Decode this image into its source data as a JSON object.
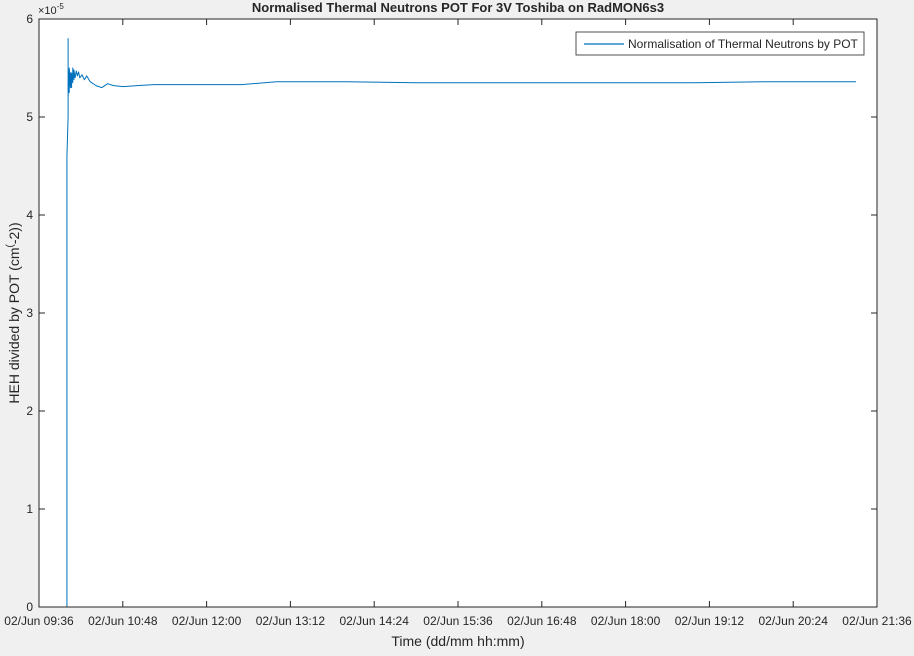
{
  "chart_data": {
    "type": "line",
    "title": "Normalised Thermal Neutrons POT For 3V Toshiba on RadMON6s3",
    "xlabel": "Time (dd/mm hh:mm)",
    "ylabel_main": "HEH divided by POT (cm",
    "ylabel_sup": "(",
    "ylabel_tail": "-2))",
    "y_exponent_base": "×10",
    "y_exponent": "-5",
    "xlim": [
      "2025-06-02T09:36",
      "2025-06-02T21:36"
    ],
    "ylim": [
      0,
      6e-05
    ],
    "x_tick_values": [
      "2025-06-02T09:36",
      "2025-06-02T10:48",
      "2025-06-02T12:00",
      "2025-06-02T13:12",
      "2025-06-02T14:24",
      "2025-06-02T15:36",
      "2025-06-02T16:48",
      "2025-06-02T18:00",
      "2025-06-02T19:12",
      "2025-06-02T20:24",
      "2025-06-02T21:36"
    ],
    "x_tick_labels": [
      "02/Jun 09:36",
      "02/Jun 10:48",
      "02/Jun 12:00",
      "02/Jun 13:12",
      "02/Jun 14:24",
      "02/Jun 15:36",
      "02/Jun 16:48",
      "02/Jun 18:00",
      "02/Jun 19:12",
      "02/Jun 20:24",
      "02/Jun 21:36"
    ],
    "y_tick_values": [
      0,
      1e-05,
      2e-05,
      3e-05,
      4e-05,
      5e-05,
      6e-05
    ],
    "y_tick_labels": [
      "0",
      "1",
      "2",
      "3",
      "4",
      "5",
      "6"
    ],
    "grid": false,
    "legend_position": "top-right",
    "series": [
      {
        "name": "Normalisation of Thermal Neutrons by POT",
        "color": "#0072bd",
        "x": [
          "2025-06-02T10:00",
          "2025-06-02T10:00",
          "2025-06-02T10:00",
          "2025-06-02T10:00",
          "2025-06-02T10:01",
          "2025-06-02T10:01",
          "2025-06-02T10:01",
          "2025-06-02T10:01",
          "2025-06-02T10:01",
          "2025-06-02T10:02",
          "2025-06-02T10:02",
          "2025-06-02T10:02",
          "2025-06-02T10:03",
          "2025-06-02T10:03",
          "2025-06-02T10:04",
          "2025-06-02T10:04",
          "2025-06-02T10:05",
          "2025-06-02T10:05",
          "2025-06-02T10:06",
          "2025-06-02T10:06",
          "2025-06-02T10:07",
          "2025-06-02T10:08",
          "2025-06-02T10:09",
          "2025-06-02T10:10",
          "2025-06-02T10:11",
          "2025-06-02T10:13",
          "2025-06-02T10:15",
          "2025-06-02T10:17",
          "2025-06-02T10:20",
          "2025-06-02T10:25",
          "2025-06-02T10:30",
          "2025-06-02T10:35",
          "2025-06-02T10:40",
          "2025-06-02T10:48",
          "2025-06-02T11:00",
          "2025-06-02T11:15",
          "2025-06-02T11:30",
          "2025-06-02T12:00",
          "2025-06-02T12:30",
          "2025-06-02T13:00",
          "2025-06-02T13:30",
          "2025-06-02T14:00",
          "2025-06-02T15:00",
          "2025-06-02T16:00",
          "2025-06-02T17:00",
          "2025-06-02T18:00",
          "2025-06-02T19:00",
          "2025-06-02T20:00",
          "2025-06-02T21:00",
          "2025-06-02T21:18"
        ],
        "y": [
          0,
          2.7e-05,
          4.3e-05,
          4.6e-05,
          5e-05,
          5.8e-05,
          5.3e-05,
          5.6e-05,
          5.2e-05,
          5.5e-05,
          5.25e-05,
          5.5e-05,
          5.3e-05,
          5.45e-05,
          5.3e-05,
          5.45e-05,
          5.35e-05,
          5.5e-05,
          5.38e-05,
          5.48e-05,
          5.4e-05,
          5.47e-05,
          5.42e-05,
          5.46e-05,
          5.4e-05,
          5.43e-05,
          5.38e-05,
          5.42e-05,
          5.36e-05,
          5.32e-05,
          5.3e-05,
          5.34e-05,
          5.32e-05,
          5.31e-05,
          5.32e-05,
          5.33e-05,
          5.33e-05,
          5.33e-05,
          5.33e-05,
          5.36e-05,
          5.36e-05,
          5.36e-05,
          5.35e-05,
          5.35e-05,
          5.35e-05,
          5.35e-05,
          5.35e-05,
          5.36e-05,
          5.36e-05,
          5.36e-05
        ]
      }
    ]
  }
}
